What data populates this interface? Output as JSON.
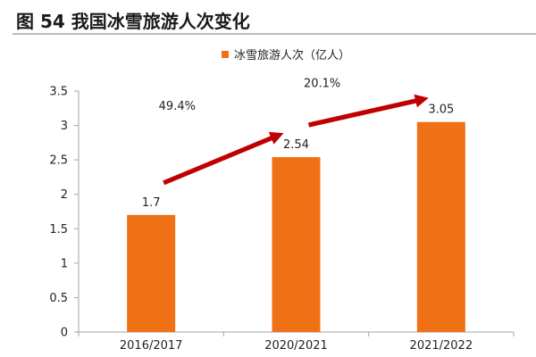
{
  "figure": {
    "title": "图 54 我国冰雪旅游人次变化"
  },
  "colors": {
    "bar": "#f07016",
    "arrow": "#c00000",
    "axis": "#a6a6a6"
  },
  "chart_data": {
    "type": "bar",
    "categories": [
      "2016/2017",
      "2020/2021",
      "2021/2022"
    ],
    "series": [
      {
        "name": "冰雪旅游人次（亿人）",
        "values": [
          1.7,
          2.54,
          3.05
        ]
      }
    ],
    "data_labels": [
      "1.7",
      "2.54",
      "3.05"
    ],
    "ylim": [
      0,
      3.5
    ],
    "yticks": [
      "0",
      "0.5",
      "1",
      "1.5",
      "2",
      "2.5",
      "3",
      "3.5"
    ],
    "xlabel": "",
    "ylabel": "",
    "grid": false,
    "legend": "top-center",
    "annotations": [
      {
        "text": "49.4%",
        "from": "2016/2017",
        "to": "2020/2021"
      },
      {
        "text": "20.1%",
        "from": "2020/2021",
        "to": "2021/2022"
      }
    ]
  }
}
